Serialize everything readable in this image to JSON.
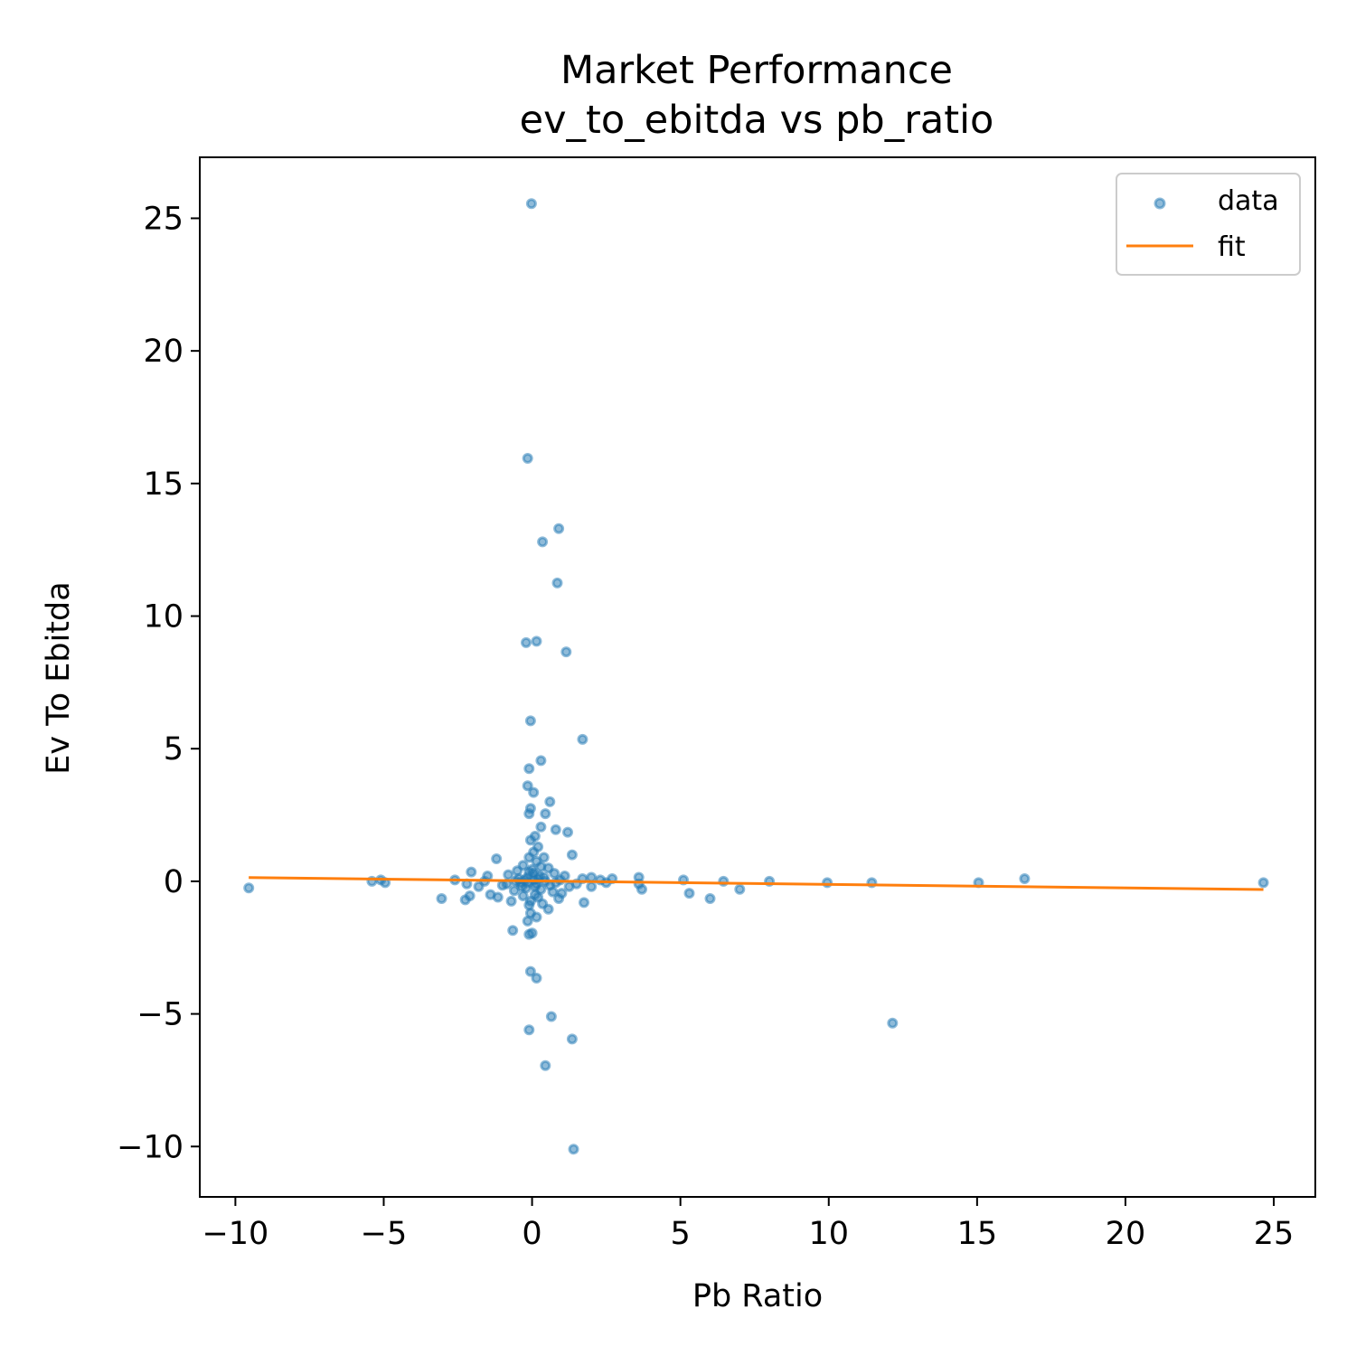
{
  "chart_data": {
    "type": "scatter",
    "title": "Market Performance",
    "subtitle": "ev_to_ebitda vs pb_ratio",
    "xlabel": "Pb Ratio",
    "ylabel": "Ev To Ebitda",
    "xlim": [
      -11.2,
      26.4
    ],
    "ylim": [
      -11.9,
      27.3
    ],
    "xticks": [
      -10,
      -5,
      0,
      5,
      10,
      15,
      20,
      25
    ],
    "yticks": [
      -10,
      -5,
      0,
      5,
      10,
      15,
      20,
      25
    ],
    "xtick_labels": [
      "−10",
      "−5",
      "0",
      "5",
      "10",
      "15",
      "20",
      "25"
    ],
    "ytick_labels": [
      "−10",
      "−5",
      "0",
      "5",
      "10",
      "15",
      "20",
      "25"
    ],
    "grid": false,
    "legend_position": "top-right",
    "colors": {
      "data": "#1f77b4",
      "fit": "#ff7f0e"
    },
    "series": [
      {
        "name": "data",
        "kind": "scatter",
        "points": [
          [
            -0.02,
            25.55
          ],
          [
            -0.15,
            15.95
          ],
          [
            0.9,
            13.3
          ],
          [
            0.35,
            12.8
          ],
          [
            0.85,
            11.25
          ],
          [
            -0.2,
            9.0
          ],
          [
            0.15,
            9.05
          ],
          [
            1.15,
            8.65
          ],
          [
            -0.05,
            6.05
          ],
          [
            1.7,
            5.35
          ],
          [
            0.3,
            4.55
          ],
          [
            -0.1,
            4.25
          ],
          [
            -0.15,
            3.6
          ],
          [
            0.05,
            3.35
          ],
          [
            0.6,
            3.0
          ],
          [
            -0.05,
            2.75
          ],
          [
            -0.1,
            2.55
          ],
          [
            0.45,
            2.55
          ],
          [
            0.3,
            2.05
          ],
          [
            0.8,
            1.95
          ],
          [
            1.2,
            1.85
          ],
          [
            0.1,
            1.7
          ],
          [
            -0.05,
            1.55
          ],
          [
            0.2,
            1.3
          ],
          [
            0.05,
            1.1
          ],
          [
            1.35,
            1.0
          ],
          [
            -1.2,
            0.85
          ],
          [
            0.4,
            0.9
          ],
          [
            -0.1,
            0.9
          ],
          [
            0.15,
            0.75
          ],
          [
            -0.3,
            0.6
          ],
          [
            0.3,
            0.55
          ],
          [
            0.55,
            0.5
          ],
          [
            -0.5,
            0.4
          ],
          [
            -2.05,
            0.35
          ],
          [
            0.75,
            0.3
          ],
          [
            -0.8,
            0.25
          ],
          [
            -1.5,
            0.2
          ],
          [
            1.1,
            0.2
          ],
          [
            2.0,
            0.15
          ],
          [
            -0.15,
            0.15
          ],
          [
            0.2,
            0.1
          ],
          [
            -2.6,
            0.05
          ],
          [
            1.7,
            0.1
          ],
          [
            2.7,
            0.1
          ],
          [
            3.6,
            0.15
          ],
          [
            0.45,
            0.0
          ],
          [
            -0.4,
            -0.05
          ],
          [
            -2.2,
            -0.1
          ],
          [
            1.5,
            -0.1
          ],
          [
            -1.0,
            -0.15
          ],
          [
            0.1,
            -0.2
          ],
          [
            -0.2,
            -0.25
          ],
          [
            0.3,
            -0.3
          ],
          [
            -1.8,
            -0.2
          ],
          [
            2.0,
            -0.2
          ],
          [
            -0.6,
            -0.35
          ],
          [
            0.7,
            -0.4
          ],
          [
            -1.4,
            -0.5
          ],
          [
            1.0,
            -0.45
          ],
          [
            -0.3,
            -0.55
          ],
          [
            0.2,
            -0.6
          ],
          [
            -1.15,
            -0.6
          ],
          [
            -2.25,
            -0.7
          ],
          [
            -2.1,
            -0.55
          ],
          [
            -3.05,
            -0.65
          ],
          [
            0.9,
            -0.65
          ],
          [
            -0.7,
            -0.75
          ],
          [
            1.75,
            -0.8
          ],
          [
            0.35,
            -0.85
          ],
          [
            -0.1,
            -0.9
          ],
          [
            0.55,
            -1.05
          ],
          [
            -0.05,
            -1.2
          ],
          [
            0.15,
            -1.35
          ],
          [
            -0.15,
            -1.5
          ],
          [
            -0.65,
            -1.85
          ],
          [
            0.0,
            -1.95
          ],
          [
            -0.1,
            -2.0
          ],
          [
            -0.05,
            -3.4
          ],
          [
            0.15,
            -3.65
          ],
          [
            -0.1,
            -5.6
          ],
          [
            0.65,
            -5.1
          ],
          [
            1.35,
            -5.95
          ],
          [
            0.45,
            -6.95
          ],
          [
            1.4,
            -10.1
          ],
          [
            -9.55,
            -0.25
          ],
          [
            -5.4,
            0.0
          ],
          [
            -5.1,
            0.05
          ],
          [
            -4.95,
            -0.05
          ],
          [
            2.3,
            0.05
          ],
          [
            2.5,
            -0.05
          ],
          [
            3.7,
            -0.3
          ],
          [
            3.6,
            -0.1
          ],
          [
            5.1,
            0.05
          ],
          [
            5.3,
            -0.45
          ],
          [
            6.45,
            0.0
          ],
          [
            6.0,
            -0.65
          ],
          [
            7.0,
            -0.3
          ],
          [
            8.0,
            0.0
          ],
          [
            9.95,
            -0.05
          ],
          [
            11.45,
            -0.05
          ],
          [
            12.15,
            -5.35
          ],
          [
            15.05,
            -0.05
          ],
          [
            16.6,
            0.1
          ],
          [
            24.65,
            -0.05
          ],
          [
            -0.25,
            0.05
          ],
          [
            -0.15,
            -0.05
          ],
          [
            0.05,
            0.05
          ],
          [
            0.25,
            0.2
          ],
          [
            -0.45,
            0.1
          ],
          [
            0.6,
            -0.15
          ],
          [
            -0.85,
            -0.1
          ],
          [
            0.95,
            0.05
          ],
          [
            -1.6,
            0.0
          ],
          [
            1.25,
            -0.2
          ],
          [
            0.0,
            0.45
          ],
          [
            0.1,
            -0.5
          ],
          [
            -0.05,
            -0.75
          ],
          [
            0.05,
            0.3
          ],
          [
            0.4,
            0.15
          ],
          [
            -0.35,
            -0.2
          ],
          [
            0.8,
            -0.05
          ],
          [
            -0.55,
            0.0
          ],
          [
            0.15,
            -0.1
          ],
          [
            -0.1,
            0.35
          ]
        ]
      },
      {
        "name": "fit",
        "kind": "line",
        "points": [
          [
            -9.55,
            0.14
          ],
          [
            24.65,
            -0.31
          ]
        ]
      }
    ]
  }
}
